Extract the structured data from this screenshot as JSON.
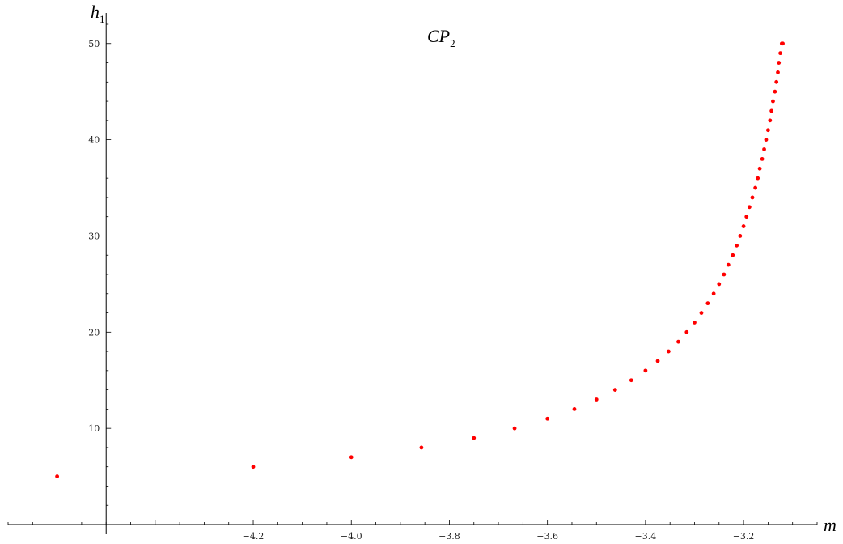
{
  "chart_data": {
    "type": "scatter",
    "title": "CP",
    "title_subscript": "2",
    "xlabel": "m",
    "ylabel": "h",
    "ylabel_subscript": "1",
    "xlim": [
      -4.7,
      -3.05
    ],
    "ylim": [
      0,
      52
    ],
    "x_ticks": [
      -4.2,
      -4.0,
      -3.8,
      -3.6,
      -3.4,
      -3.2
    ],
    "x_tick_labels": [
      "−4.2",
      "−4.0",
      "−3.8",
      "−3.6",
      "−3.4",
      "−3.2"
    ],
    "y_ticks": [
      10,
      20,
      30,
      40,
      50
    ],
    "y_tick_labels": [
      "10",
      "20",
      "30",
      "40",
      "50"
    ],
    "grid": false,
    "point_color": "#ff0000",
    "series": [
      {
        "x": [
          -4.6,
          -4.2,
          -4.0,
          -3.857,
          -3.75,
          -3.667,
          -3.6,
          -3.545,
          -3.5,
          -3.462,
          -3.429,
          -3.4,
          -3.375,
          -3.353,
          -3.333,
          -3.316,
          -3.3,
          -3.286,
          -3.273,
          -3.261,
          -3.25,
          -3.24,
          -3.231,
          -3.222,
          -3.214,
          -3.207,
          -3.2,
          -3.194,
          -3.188,
          -3.182,
          -3.176,
          -3.171,
          -3.167,
          -3.162,
          -3.158,
          -3.154,
          -3.15,
          -3.146,
          -3.143,
          -3.14,
          -3.136,
          -3.133,
          -3.13,
          -3.128,
          -3.125,
          -3.122,
          -3.12
        ],
        "y": [
          5,
          6,
          7,
          8,
          9,
          10,
          11,
          12,
          13,
          14,
          15,
          16,
          17,
          18,
          19,
          20,
          21,
          22,
          23,
          24,
          25,
          26,
          27,
          28,
          29,
          30,
          31,
          32,
          33,
          34,
          35,
          36,
          37,
          38,
          39,
          40,
          41,
          42,
          43,
          44,
          45,
          46,
          47,
          48,
          49,
          50,
          50
        ]
      }
    ]
  }
}
